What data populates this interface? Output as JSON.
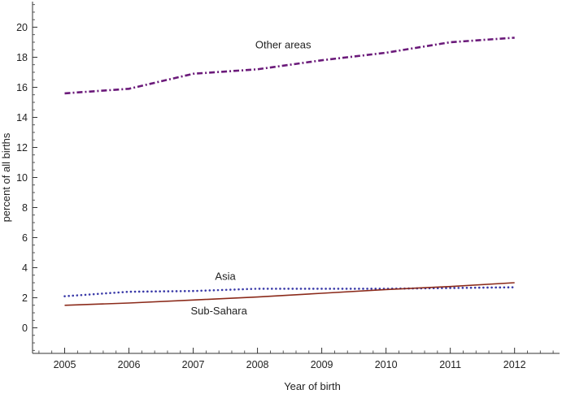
{
  "chart_data": {
    "type": "line",
    "title": "",
    "xlabel": "Year of birth",
    "ylabel": "percent of all births",
    "xlim": [
      2004.5,
      2012.7
    ],
    "ylim": [
      -1.7,
      21.7
    ],
    "x_ticks": [
      2005,
      2006,
      2007,
      2008,
      2009,
      2010,
      2011,
      2012
    ],
    "y_ticks": [
      0,
      2,
      4,
      6,
      8,
      10,
      12,
      14,
      16,
      18,
      20
    ],
    "x": [
      2005,
      2006,
      2007,
      2008,
      2009,
      2010,
      2011,
      2012
    ],
    "series": [
      {
        "name": "Other areas",
        "color": "#6b1a7a",
        "style": "dash-dot",
        "values": [
          15.6,
          15.9,
          16.9,
          17.2,
          17.8,
          18.3,
          19.0,
          19.3
        ]
      },
      {
        "name": "Asia",
        "color": "#3a3aa8",
        "style": "dotted",
        "values": [
          2.1,
          2.4,
          2.45,
          2.6,
          2.6,
          2.6,
          2.65,
          2.7
        ]
      },
      {
        "name": "Sub-Sahara",
        "color": "#8b2a1a",
        "style": "solid",
        "values": [
          1.5,
          1.65,
          1.85,
          2.05,
          2.3,
          2.55,
          2.75,
          3.0
        ]
      }
    ],
    "annotations": [
      {
        "text": "Other areas",
        "series": "Other areas",
        "x": 2008.4,
        "y": 18.6
      },
      {
        "text": "Asia",
        "series": "Asia",
        "x": 2007.5,
        "y": 3.2
      },
      {
        "text": "Sub-Sahara",
        "series": "Sub-Sahara",
        "x": 2007.4,
        "y": 0.9
      }
    ]
  }
}
